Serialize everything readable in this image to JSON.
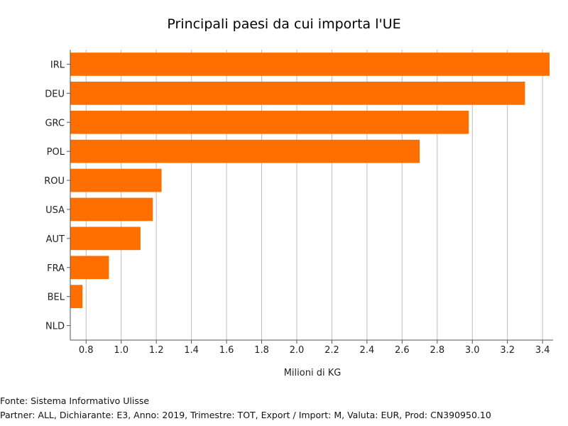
{
  "chart_data": {
    "type": "bar",
    "orientation": "horizontal",
    "title": "Principali paesi da cui importa l'UE",
    "xlabel": "Milioni di KG",
    "ylabel": "",
    "categories": [
      "IRL",
      "DEU",
      "GRC",
      "POL",
      "ROU",
      "USA",
      "AUT",
      "FRA",
      "BEL",
      "NLD"
    ],
    "values": [
      3.44,
      3.3,
      2.98,
      2.7,
      1.23,
      1.18,
      1.11,
      0.93,
      0.78,
      0.71
    ],
    "xlim": [
      0.71,
      3.46
    ],
    "xticks": [
      "0.8",
      "1.0",
      "1.2",
      "1.4",
      "1.6",
      "1.8",
      "2.0",
      "2.2",
      "2.4",
      "2.6",
      "2.8",
      "3.0",
      "3.2",
      "3.4"
    ],
    "grid": "vertical",
    "bar_color": "#ff6f00"
  },
  "footer": {
    "source": "Fonte: Sistema Informativo Ulisse",
    "params": "Partner: ALL, Dichiarante: E3, Anno: 2019, Trimestre: TOT, Export / Import: M, Valuta: EUR, Prod: CN390950.10"
  }
}
